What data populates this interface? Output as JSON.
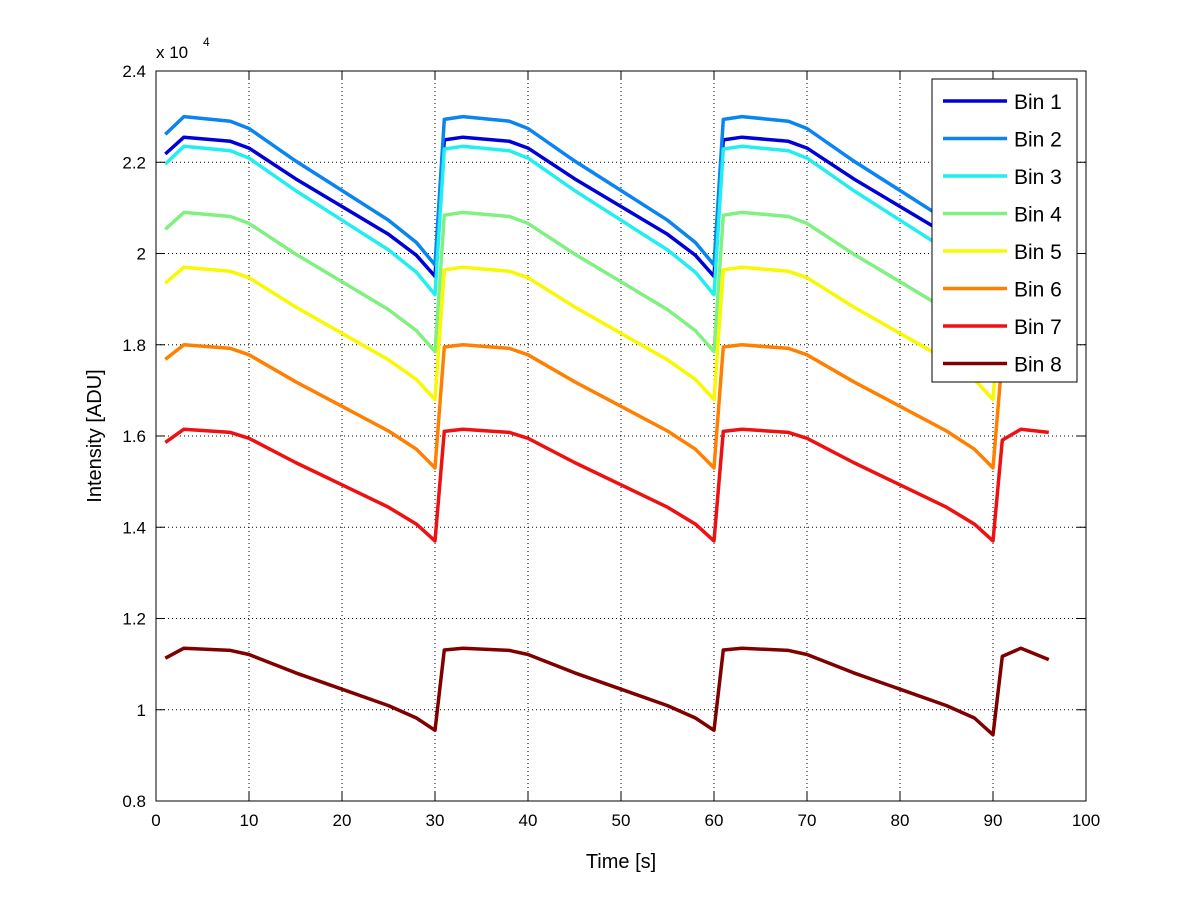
{
  "chart_data": {
    "type": "line",
    "title": "",
    "xlabel": "Time [s]",
    "ylabel": "Intensity [ADU]",
    "y_exponent_label": "x 10",
    "y_exponent": "4",
    "xlim": [
      0,
      100
    ],
    "ylim": [
      8000,
      24000
    ],
    "xticks": [
      0,
      10,
      20,
      30,
      40,
      50,
      60,
      70,
      80,
      90,
      100
    ],
    "xtick_labels": [
      "0",
      "10",
      "20",
      "30",
      "40",
      "50",
      "60",
      "70",
      "80",
      "90",
      "100"
    ],
    "yticks": [
      8000,
      10000,
      12000,
      14000,
      16000,
      18000,
      20000,
      22000,
      24000
    ],
    "ytick_labels": [
      "0.8",
      "1",
      "1.2",
      "1.4",
      "1.6",
      "1.8",
      "2",
      "2.2",
      "2.4"
    ],
    "grid": true,
    "legend_position": "top-right",
    "x": [
      1,
      3,
      8,
      10,
      15,
      20,
      25,
      28,
      30,
      31,
      33,
      38,
      40,
      45,
      50,
      55,
      58,
      60,
      61,
      63,
      68,
      70,
      75,
      80,
      85,
      88,
      90,
      91,
      93,
      96
    ],
    "series": [
      {
        "name": "Bin 1",
        "color": "#0000d8",
        "values": [
          22180,
          22550,
          22460,
          22310,
          21640,
          21030,
          20420,
          19960,
          19500,
          22490,
          22550,
          22460,
          22310,
          21640,
          21030,
          20420,
          19960,
          19500,
          22490,
          22550,
          22460,
          22310,
          21640,
          21030,
          20420,
          19960,
          19500,
          22250,
          22550,
          22460
        ]
      },
      {
        "name": "Bin 2",
        "color": "#0a84f0",
        "values": [
          22610,
          23000,
          22900,
          22740,
          22030,
          21380,
          20730,
          20240,
          19750,
          22940,
          23000,
          22900,
          22740,
          22030,
          21380,
          20730,
          20240,
          19750,
          22940,
          23000,
          22900,
          22740,
          22030,
          21380,
          20730,
          20240,
          19750,
          22680,
          23000,
          22900
        ]
      },
      {
        "name": "Bin 3",
        "color": "#22eef0",
        "values": [
          21960,
          22350,
          22250,
          22090,
          21380,
          20730,
          20080,
          19590,
          19100,
          22290,
          22350,
          22250,
          22090,
          21380,
          20730,
          20080,
          19590,
          19100,
          22290,
          22350,
          22250,
          22090,
          21380,
          20730,
          20080,
          19590,
          19100,
          22030,
          22350,
          22250
        ]
      },
      {
        "name": "Bin 4",
        "color": "#80f080",
        "values": [
          20530,
          20900,
          20810,
          20660,
          19990,
          19380,
          18770,
          18310,
          17850,
          20840,
          20900,
          20810,
          20660,
          19990,
          19380,
          18770,
          18310,
          17850,
          20840,
          20900,
          20810,
          20660,
          19990,
          19380,
          18770,
          18310,
          17850,
          20600,
          20900,
          20810
        ]
      },
      {
        "name": "Bin 5",
        "color": "#f8f800",
        "values": [
          19350,
          19700,
          19610,
          19470,
          18830,
          18250,
          17670,
          17240,
          16800,
          19640,
          19700,
          19610,
          19470,
          18830,
          18250,
          17670,
          17240,
          16800,
          19640,
          19700,
          19610,
          19470,
          18830,
          18250,
          17670,
          17240,
          16800,
          19410,
          19700,
          19610
        ]
      },
      {
        "name": "Bin 6",
        "color": "#ff8000",
        "values": [
          17680,
          18000,
          17920,
          17780,
          17190,
          16650,
          16110,
          15710,
          15300,
          17950,
          18000,
          17920,
          17780,
          17190,
          16650,
          16110,
          15710,
          15300,
          17950,
          18000,
          17920,
          17780,
          17190,
          16650,
          16110,
          15710,
          15300,
          17730,
          18000,
          17920
        ]
      },
      {
        "name": "Bin 7",
        "color": "#ee1111",
        "values": [
          15860,
          16150,
          16080,
          15950,
          15420,
          14930,
          14440,
          14070,
          13700,
          16100,
          16150,
          16080,
          15950,
          15420,
          14930,
          14440,
          14070,
          13700,
          16100,
          16150,
          16080,
          15950,
          15420,
          14930,
          14440,
          14070,
          13700,
          15910,
          16150,
          16080
        ]
      },
      {
        "name": "Bin 8",
        "color": "#800000",
        "values": [
          11130,
          11350,
          11300,
          11210,
          10810,
          10450,
          10090,
          9820,
          9550,
          11310,
          11350,
          11300,
          11210,
          10810,
          10450,
          10090,
          9820,
          9550,
          11310,
          11350,
          11300,
          11210,
          10810,
          10450,
          10090,
          9820,
          9450,
          11170,
          11350,
          11100
        ]
      }
    ]
  }
}
